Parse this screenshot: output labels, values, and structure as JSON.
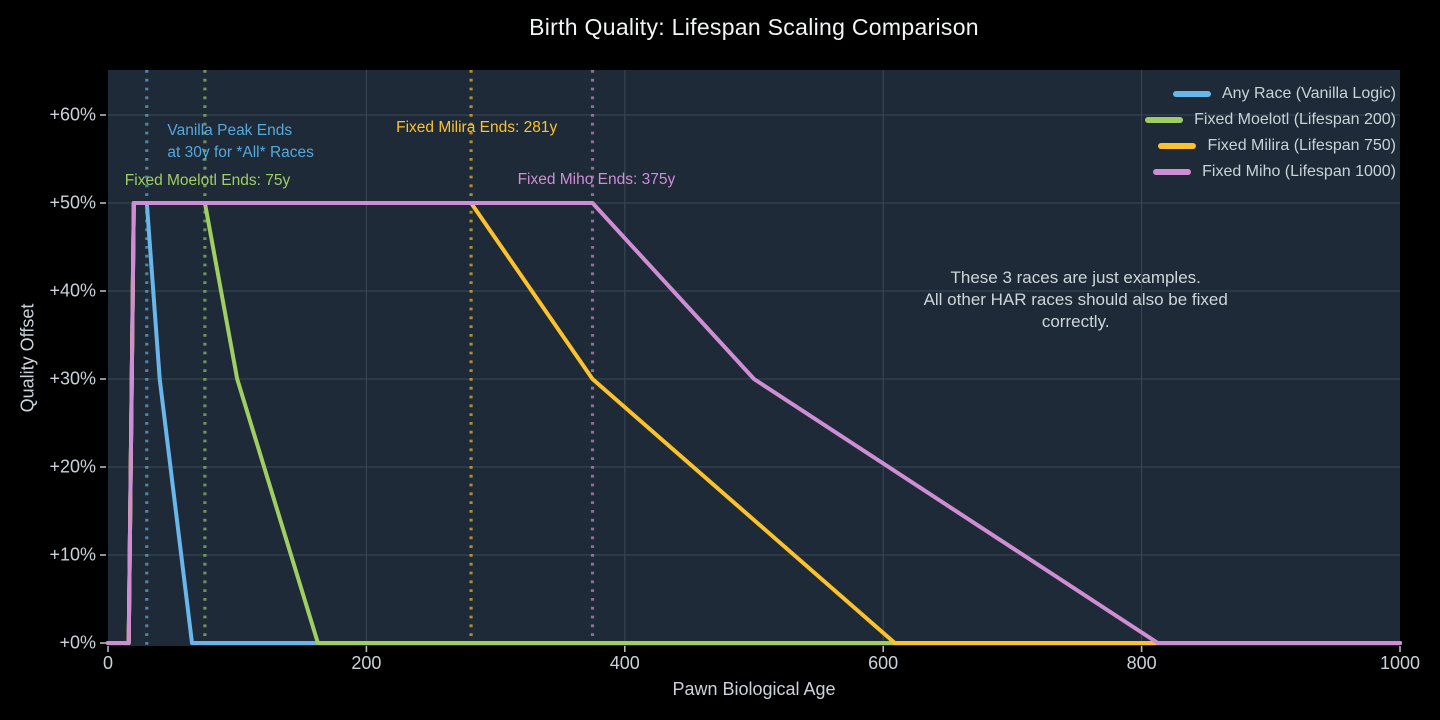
{
  "theme": {
    "background": "#000000",
    "plot_background": "#1e2a37",
    "grid_color": "#3b4957",
    "tick_color": "#aeb9c0",
    "tick_label_color": "#c9d3d9",
    "title_color": "#f2f5f6",
    "axis_title_color": "#c9d3d9"
  },
  "chart_data": {
    "type": "line",
    "title": "Birth Quality: Lifespan Scaling Comparison",
    "xlabel": "Pawn Biological Age",
    "ylabel": "Quality Offset",
    "xlim": [
      0,
      1000
    ],
    "ylim_pct": [
      0,
      65
    ],
    "grid": true,
    "legend_position": "top-right",
    "x_ticks": [
      0,
      200,
      400,
      600,
      800,
      1000
    ],
    "x_gridlines": [
      200,
      400,
      600,
      800
    ],
    "y_ticks": [
      {
        "value": 0,
        "label": "+0%"
      },
      {
        "value": 10,
        "label": "+10%"
      },
      {
        "value": 20,
        "label": "+20%"
      },
      {
        "value": 30,
        "label": "+30%"
      },
      {
        "value": 40,
        "label": "+40%"
      },
      {
        "value": 50,
        "label": "+50%"
      },
      {
        "value": 60,
        "label": "+60%"
      }
    ],
    "series": [
      {
        "name": "Any Race (Vanilla Logic)",
        "color": "#68b6ea",
        "points": [
          [
            0,
            0
          ],
          [
            16,
            0
          ],
          [
            20,
            50
          ],
          [
            30,
            50
          ],
          [
            40,
            30
          ],
          [
            65,
            0
          ],
          [
            1000,
            0
          ]
        ]
      },
      {
        "name": "Fixed Moelotl (Lifespan 200)",
        "color": "#a0ce63",
        "points": [
          [
            0,
            0
          ],
          [
            16,
            0
          ],
          [
            20,
            50
          ],
          [
            75,
            50
          ],
          [
            100,
            30
          ],
          [
            162.5,
            0
          ],
          [
            1000,
            0
          ]
        ]
      },
      {
        "name": "Fixed Milira (Lifespan 750)",
        "color": "#fcc22d",
        "points": [
          [
            0,
            0
          ],
          [
            16,
            0
          ],
          [
            20,
            50
          ],
          [
            281,
            50
          ],
          [
            375,
            30
          ],
          [
            609,
            0
          ],
          [
            1000,
            0
          ]
        ]
      },
      {
        "name": "Fixed Miho (Lifespan 1000)",
        "color": "#cf8ed3",
        "points": [
          [
            0,
            0
          ],
          [
            16,
            0
          ],
          [
            20,
            50
          ],
          [
            375,
            50
          ],
          [
            500,
            30
          ],
          [
            812.5,
            0
          ],
          [
            1000,
            0
          ]
        ]
      }
    ],
    "markers": [
      {
        "x": 30,
        "color": "#68b6ea"
      },
      {
        "x": 75,
        "color": "#a0ce63"
      },
      {
        "x": 281,
        "color": "#fcc22d"
      },
      {
        "x": 375,
        "color": "#cf8ed3"
      }
    ],
    "annotations": [
      {
        "text": "Vanilla Peak Ends\nat 30y for *All* Races",
        "color": "#54a9dd",
        "x": 46,
        "y": 59.4,
        "align": "left"
      },
      {
        "text": "Fixed Moelotl Ends: 75y",
        "color": "#a0ce63",
        "x": 13,
        "y": 53.8,
        "align": "left"
      },
      {
        "text": "Fixed Milira Ends: 281y",
        "color": "#fcc22d",
        "x": 223,
        "y": 59.8,
        "align": "left"
      },
      {
        "text": "Fixed Miho Ends: 375y",
        "color": "#cf8ed3",
        "x": 317,
        "y": 53.9,
        "align": "left"
      },
      {
        "text": "These 3 races are just examples.\nAll other HAR races should also be fixed correctly.",
        "color": "#cdd6da",
        "x": 749,
        "y": 42.7,
        "align": "center"
      }
    ]
  }
}
